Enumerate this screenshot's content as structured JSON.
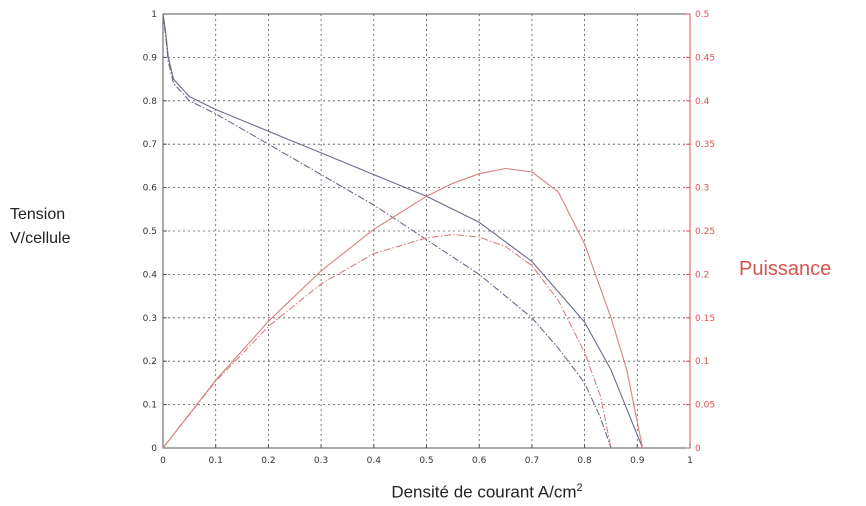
{
  "chart_data": {
    "type": "line",
    "xlabel": "Densité de courant A/cm",
    "xlabel_sup": "2",
    "ylabel_left": [
      "Tension",
      "V/cellule"
    ],
    "ylabel_right": "Puissance",
    "xlim": [
      0,
      1
    ],
    "ylim_left": [
      0,
      1
    ],
    "ylim_right": [
      0,
      0.5
    ],
    "grid": true,
    "x_ticks": [
      "0",
      "0.1",
      "0.2",
      "0.3",
      "0.4",
      "0.5",
      "0.6",
      "0.7",
      "0.8",
      "0.9",
      "1"
    ],
    "y_left_ticks": [
      "0",
      "0.1",
      "0.2",
      "0.3",
      "0.4",
      "0.5",
      "0.6",
      "0.7",
      "0.8",
      "0.9",
      "1"
    ],
    "y_right_ticks": [
      "0",
      "0.05",
      "0.1",
      "0.15",
      "0.2",
      "0.25",
      "0.3",
      "0.35",
      "0.4",
      "0.45",
      "0.5"
    ],
    "colors": {
      "voltage": "#6a6a8a",
      "power": "#d98080",
      "right_axis": "#d9534f"
    },
    "series": [
      {
        "axis": "left",
        "style": "solid",
        "x": [
          0,
          0.005,
          0.01,
          0.02,
          0.05,
          0.1,
          0.2,
          0.3,
          0.4,
          0.5,
          0.6,
          0.7,
          0.8,
          0.85,
          0.9,
          0.91
        ],
        "y": [
          1.0,
          0.96,
          0.9,
          0.85,
          0.81,
          0.78,
          0.73,
          0.68,
          0.63,
          0.58,
          0.52,
          0.43,
          0.29,
          0.18,
          0.03,
          0.0
        ]
      },
      {
        "axis": "left",
        "style": "dashdot",
        "x": [
          0,
          0.005,
          0.01,
          0.02,
          0.05,
          0.1,
          0.2,
          0.3,
          0.4,
          0.5,
          0.6,
          0.7,
          0.75,
          0.8,
          0.83,
          0.85
        ],
        "y": [
          1.0,
          0.95,
          0.89,
          0.84,
          0.8,
          0.77,
          0.7,
          0.63,
          0.56,
          0.48,
          0.4,
          0.3,
          0.23,
          0.15,
          0.07,
          0.0
        ]
      },
      {
        "axis": "right",
        "style": "solid",
        "x": [
          0,
          0.1,
          0.2,
          0.3,
          0.4,
          0.5,
          0.55,
          0.6,
          0.65,
          0.7,
          0.75,
          0.8,
          0.85,
          0.88,
          0.9,
          0.91
        ],
        "y": [
          0,
          0.078,
          0.146,
          0.204,
          0.252,
          0.29,
          0.305,
          0.316,
          0.322,
          0.318,
          0.295,
          0.235,
          0.15,
          0.09,
          0.03,
          0.0
        ]
      },
      {
        "axis": "right",
        "style": "dashdot",
        "x": [
          0,
          0.1,
          0.2,
          0.3,
          0.4,
          0.5,
          0.55,
          0.6,
          0.65,
          0.7,
          0.75,
          0.8,
          0.83,
          0.85
        ],
        "y": [
          0,
          0.077,
          0.14,
          0.189,
          0.224,
          0.242,
          0.246,
          0.243,
          0.232,
          0.21,
          0.17,
          0.11,
          0.06,
          0.0
        ]
      }
    ]
  }
}
